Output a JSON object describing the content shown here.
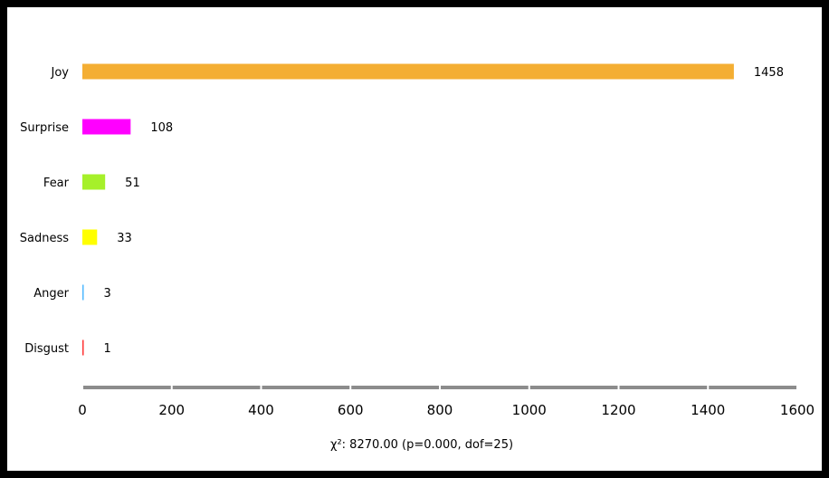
{
  "chart_data": {
    "type": "bar",
    "orientation": "horizontal",
    "categories": [
      "Joy",
      "Surprise",
      "Fear",
      "Sadness",
      "Anger",
      "Disgust"
    ],
    "values": [
      1458,
      108,
      51,
      33,
      3,
      1
    ],
    "colors": [
      "#f4ae33",
      "#ff00ff",
      "#a6f02a",
      "#ffff00",
      "#4fb8ff",
      "#ff3333"
    ],
    "xlim": [
      0,
      1600
    ],
    "xticks": [
      "0",
      "200",
      "400",
      "600",
      "800",
      "1000",
      "1200",
      "1400",
      "1600"
    ],
    "statistic": "χ²: 8270.00 (p=0.000, dof=25)",
    "grid": false
  }
}
